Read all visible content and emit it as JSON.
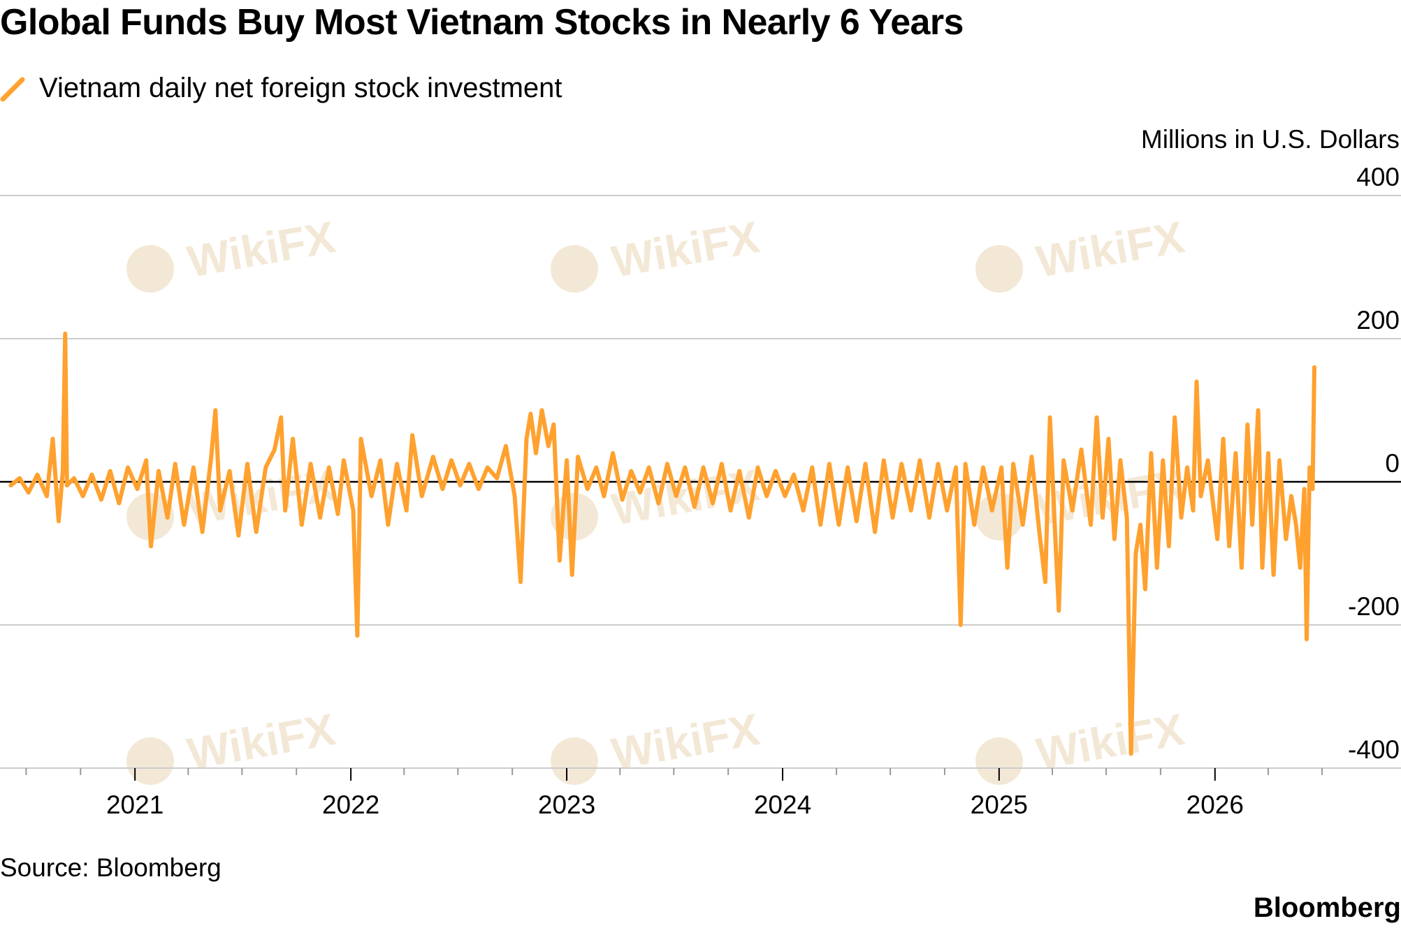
{
  "title": "Global Funds Buy Most Vietnam Stocks in Nearly 6 Years",
  "source": "Source: Bloomberg",
  "brand": "Bloomberg",
  "watermark_text": "WikiFX",
  "colors": {
    "series": "#FFA12F",
    "grid": "#cccccc",
    "zero": "#000000",
    "text": "#000000",
    "watermark": "#f3e8d6"
  },
  "chart_data": {
    "type": "line",
    "unit_label": "Millions in U.S. Dollars",
    "ylim": [
      -400,
      400
    ],
    "yticks": [
      400,
      200,
      0,
      -200,
      -400
    ],
    "xlim": [
      "2020-06-01",
      "2026-07-01"
    ],
    "xticks": [
      "2021",
      "2022",
      "2023",
      "2024",
      "2025",
      "2026"
    ],
    "grid": true,
    "legend_position": "top-left",
    "series": [
      {
        "name": "Vietnam daily net foreign stock investment",
        "points": [
          [
            "2020-06-05",
            -5
          ],
          [
            "2020-06-20",
            5
          ],
          [
            "2020-07-05",
            -15
          ],
          [
            "2020-07-20",
            10
          ],
          [
            "2020-08-05",
            -20
          ],
          [
            "2020-08-15",
            60
          ],
          [
            "2020-08-25",
            -55
          ],
          [
            "2020-09-01",
            15
          ],
          [
            "2020-09-05",
            207
          ],
          [
            "2020-09-08",
            -5
          ],
          [
            "2020-09-20",
            5
          ],
          [
            "2020-10-05",
            -20
          ],
          [
            "2020-10-20",
            10
          ],
          [
            "2020-11-05",
            -25
          ],
          [
            "2020-11-20",
            15
          ],
          [
            "2020-12-05",
            -30
          ],
          [
            "2020-12-20",
            20
          ],
          [
            "2021-01-05",
            -10
          ],
          [
            "2021-01-20",
            30
          ],
          [
            "2021-01-28",
            -90
          ],
          [
            "2021-02-10",
            15
          ],
          [
            "2021-02-25",
            -50
          ],
          [
            "2021-03-10",
            25
          ],
          [
            "2021-03-25",
            -60
          ],
          [
            "2021-04-10",
            20
          ],
          [
            "2021-04-25",
            -70
          ],
          [
            "2021-05-10",
            35
          ],
          [
            "2021-05-17",
            100
          ],
          [
            "2021-05-25",
            -40
          ],
          [
            "2021-06-10",
            15
          ],
          [
            "2021-06-25",
            -75
          ],
          [
            "2021-07-10",
            25
          ],
          [
            "2021-07-25",
            -70
          ],
          [
            "2021-08-10",
            20
          ],
          [
            "2021-08-25",
            45
          ],
          [
            "2021-09-05",
            90
          ],
          [
            "2021-09-12",
            -40
          ],
          [
            "2021-09-25",
            60
          ],
          [
            "2021-10-10",
            -60
          ],
          [
            "2021-10-25",
            25
          ],
          [
            "2021-11-10",
            -50
          ],
          [
            "2021-11-25",
            20
          ],
          [
            "2021-12-10",
            -45
          ],
          [
            "2021-12-20",
            30
          ],
          [
            "2022-01-05",
            -40
          ],
          [
            "2022-01-12",
            -215
          ],
          [
            "2022-01-18",
            60
          ],
          [
            "2022-02-05",
            -20
          ],
          [
            "2022-02-20",
            30
          ],
          [
            "2022-03-05",
            -60
          ],
          [
            "2022-03-20",
            25
          ],
          [
            "2022-04-05",
            -40
          ],
          [
            "2022-04-15",
            65
          ],
          [
            "2022-05-01",
            -20
          ],
          [
            "2022-05-20",
            35
          ],
          [
            "2022-06-05",
            -10
          ],
          [
            "2022-06-20",
            30
          ],
          [
            "2022-07-05",
            -5
          ],
          [
            "2022-07-20",
            25
          ],
          [
            "2022-08-05",
            -10
          ],
          [
            "2022-08-20",
            20
          ],
          [
            "2022-09-05",
            5
          ],
          [
            "2022-09-20",
            50
          ],
          [
            "2022-10-05",
            -20
          ],
          [
            "2022-10-15",
            -140
          ],
          [
            "2022-10-25",
            60
          ],
          [
            "2022-11-01",
            95
          ],
          [
            "2022-11-10",
            40
          ],
          [
            "2022-11-20",
            100
          ],
          [
            "2022-12-01",
            50
          ],
          [
            "2022-12-10",
            80
          ],
          [
            "2022-12-20",
            -110
          ],
          [
            "2023-01-01",
            30
          ],
          [
            "2023-01-10",
            -130
          ],
          [
            "2023-01-20",
            35
          ],
          [
            "2023-02-05",
            -10
          ],
          [
            "2023-02-20",
            20
          ],
          [
            "2023-03-05",
            -20
          ],
          [
            "2023-03-20",
            40
          ],
          [
            "2023-04-05",
            -25
          ],
          [
            "2023-04-20",
            15
          ],
          [
            "2023-05-05",
            -15
          ],
          [
            "2023-05-20",
            20
          ],
          [
            "2023-06-05",
            -30
          ],
          [
            "2023-06-20",
            25
          ],
          [
            "2023-07-05",
            -20
          ],
          [
            "2023-07-20",
            20
          ],
          [
            "2023-08-05",
            -35
          ],
          [
            "2023-08-20",
            20
          ],
          [
            "2023-09-05",
            -30
          ],
          [
            "2023-09-20",
            25
          ],
          [
            "2023-10-05",
            -40
          ],
          [
            "2023-10-20",
            15
          ],
          [
            "2023-11-05",
            -50
          ],
          [
            "2023-11-20",
            20
          ],
          [
            "2023-12-05",
            -20
          ],
          [
            "2023-12-20",
            15
          ],
          [
            "2024-01-05",
            -20
          ],
          [
            "2024-01-20",
            10
          ],
          [
            "2024-02-05",
            -40
          ],
          [
            "2024-02-20",
            20
          ],
          [
            "2024-03-05",
            -60
          ],
          [
            "2024-03-20",
            25
          ],
          [
            "2024-04-05",
            -60
          ],
          [
            "2024-04-20",
            20
          ],
          [
            "2024-05-05",
            -55
          ],
          [
            "2024-05-20",
            25
          ],
          [
            "2024-06-05",
            -70
          ],
          [
            "2024-06-20",
            30
          ],
          [
            "2024-07-05",
            -50
          ],
          [
            "2024-07-20",
            25
          ],
          [
            "2024-08-05",
            -40
          ],
          [
            "2024-08-20",
            30
          ],
          [
            "2024-09-05",
            -50
          ],
          [
            "2024-09-20",
            25
          ],
          [
            "2024-10-05",
            -40
          ],
          [
            "2024-10-20",
            20
          ],
          [
            "2024-10-28",
            -200
          ],
          [
            "2024-11-05",
            25
          ],
          [
            "2024-11-20",
            -60
          ],
          [
            "2024-12-05",
            20
          ],
          [
            "2024-12-20",
            -40
          ],
          [
            "2025-01-05",
            20
          ],
          [
            "2025-01-15",
            -120
          ],
          [
            "2025-01-25",
            25
          ],
          [
            "2025-02-10",
            -60
          ],
          [
            "2025-02-25",
            35
          ],
          [
            "2025-03-10",
            -70
          ],
          [
            "2025-03-20",
            -140
          ],
          [
            "2025-03-28",
            90
          ],
          [
            "2025-04-05",
            -60
          ],
          [
            "2025-04-12",
            -180
          ],
          [
            "2025-04-20",
            30
          ],
          [
            "2025-05-05",
            -40
          ],
          [
            "2025-05-20",
            45
          ],
          [
            "2025-06-05",
            -60
          ],
          [
            "2025-06-15",
            90
          ],
          [
            "2025-06-25",
            -50
          ],
          [
            "2025-07-05",
            60
          ],
          [
            "2025-07-15",
            -80
          ],
          [
            "2025-07-25",
            30
          ],
          [
            "2025-08-05",
            -50
          ],
          [
            "2025-08-12",
            -380
          ],
          [
            "2025-08-20",
            -100
          ],
          [
            "2025-08-28",
            -60
          ],
          [
            "2025-09-05",
            -150
          ],
          [
            "2025-09-15",
            40
          ],
          [
            "2025-09-25",
            -120
          ],
          [
            "2025-10-05",
            30
          ],
          [
            "2025-10-15",
            -90
          ],
          [
            "2025-10-25",
            90
          ],
          [
            "2025-11-05",
            -50
          ],
          [
            "2025-11-15",
            20
          ],
          [
            "2025-11-25",
            -40
          ],
          [
            "2025-12-01",
            140
          ],
          [
            "2025-12-08",
            -20
          ],
          [
            "2025-12-20",
            30
          ],
          [
            "2026-01-05",
            -80
          ],
          [
            "2026-01-15",
            60
          ],
          [
            "2026-01-25",
            -90
          ],
          [
            "2026-02-05",
            40
          ],
          [
            "2026-02-15",
            -120
          ],
          [
            "2026-02-25",
            80
          ],
          [
            "2026-03-05",
            -60
          ],
          [
            "2026-03-15",
            100
          ],
          [
            "2026-03-22",
            -120
          ],
          [
            "2026-04-01",
            40
          ],
          [
            "2026-04-10",
            -130
          ],
          [
            "2026-04-20",
            30
          ],
          [
            "2026-05-01",
            -80
          ],
          [
            "2026-05-10",
            -20
          ],
          [
            "2026-05-18",
            -60
          ],
          [
            "2026-05-25",
            -120
          ],
          [
            "2026-06-01",
            -10
          ],
          [
            "2026-06-05",
            -220
          ],
          [
            "2026-06-10",
            20
          ],
          [
            "2026-06-15",
            -10
          ],
          [
            "2026-06-18",
            160
          ]
        ]
      }
    ]
  }
}
